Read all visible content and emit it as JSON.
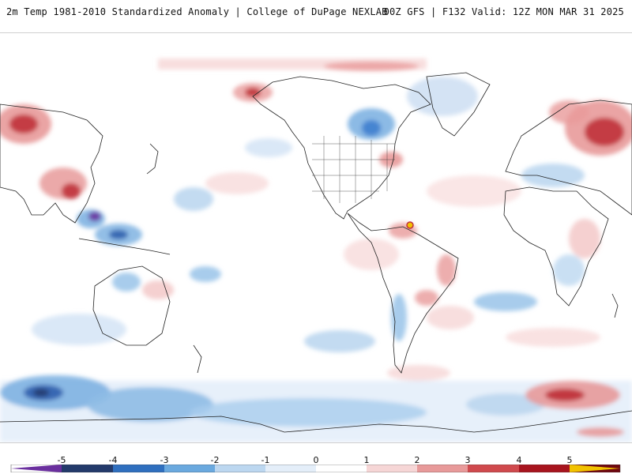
{
  "header": {
    "left_title": "2m Temp 1981-2010 Standardized Anomaly | College of DuPage NEXLAB",
    "right_title": "00Z GFS | F132 Valid: 12Z MON MAR 31 2025"
  },
  "map": {
    "projection": "cylindrical equidistant (Pacific-centered)",
    "variable": "2m temperature standardized anomaly"
  },
  "colorbar": {
    "ticks": [
      "-5",
      "-4",
      "-3",
      "-2",
      "-1",
      "0",
      "1",
      "2",
      "3",
      "4",
      "5"
    ],
    "colors": [
      "#6a2f9e",
      "#233a6b",
      "#2f6fbf",
      "#6aa9df",
      "#bcd7f0",
      "#e4eef9",
      "#ffffff",
      "#f6d6d6",
      "#e89a9a",
      "#d0494d",
      "#a8141e",
      "#6e0710",
      "#f2c200"
    ]
  }
}
